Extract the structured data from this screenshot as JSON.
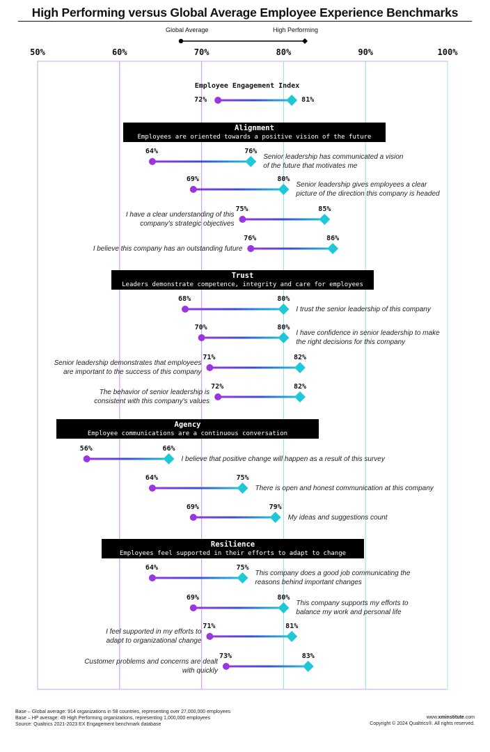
{
  "title": "High Performing versus Global Average Employee Experience Benchmarks",
  "legend": {
    "global": "Global Average",
    "high": "High Performing"
  },
  "colors": {
    "purple": "#9b35e0",
    "cyan": "#1ec8d8",
    "grid_purple": "#c9a3ee",
    "grid_cyan": "#9de3ec"
  },
  "axis": {
    "ticks": [
      "50%",
      "60%",
      "70%",
      "80%",
      "90%",
      "100%"
    ]
  },
  "sections": [
    {
      "title": "Alignment",
      "subtitle": "Employees are oriented towards a positive vision of the future"
    },
    {
      "title": "Trust",
      "subtitle": "Leaders demonstrate competence, integrity and care for employees"
    },
    {
      "title": "Agency",
      "subtitle": "Employee communications are a continuous conversation"
    },
    {
      "title": "Resilience",
      "subtitle": "Employees feel supported in their efforts to adapt to change"
    }
  ],
  "chart_data": {
    "type": "dumbbell",
    "title": "High Performing versus Global Average Employee Experience Benchmarks",
    "xlim": [
      50,
      100
    ],
    "x_unit": "%",
    "series": [
      {
        "name": "Global Average"
      },
      {
        "name": "High Performing"
      }
    ],
    "rows": [
      {
        "label": "Employee Engagement Index",
        "ga": 72,
        "hp": 81
      },
      {
        "label": "Senior leadership has communicated a vision\nof the future that motivates me",
        "ga": 64,
        "hp": 76
      },
      {
        "label": "Senior leadership gives employees a clear\npicture of the direction this company is headed",
        "ga": 69,
        "hp": 80
      },
      {
        "label": "I have a clear understanding of this\ncompany's strategic objectives",
        "ga": 75,
        "hp": 85
      },
      {
        "label": "I believe this company has an outstanding future",
        "ga": 76,
        "hp": 86
      },
      {
        "label": "I trust the senior leadership of this company",
        "ga": 68,
        "hp": 80
      },
      {
        "label": "I have confidence in senior leadership to make\nthe right decisions for this company",
        "ga": 70,
        "hp": 80
      },
      {
        "label": "Senior leadership demonstrates that employees\nare important to the success of this company",
        "ga": 71,
        "hp": 82
      },
      {
        "label": "The behavior of senior leadership is\nconsistent with this company's values",
        "ga": 72,
        "hp": 82
      },
      {
        "label": "I believe that positive change will happen as a result of this survey",
        "ga": 56,
        "hp": 66
      },
      {
        "label": "There is open and honest communication at this company",
        "ga": 64,
        "hp": 75
      },
      {
        "label": "My ideas and suggestions count",
        "ga": 69,
        "hp": 79
      },
      {
        "label": "This company does a good job communicating the\nreasons behind important changes",
        "ga": 64,
        "hp": 75
      },
      {
        "label": "This company supports my efforts to\nbalance my work and personal life",
        "ga": 69,
        "hp": 80
      },
      {
        "label": "I feel supported in my efforts to\nadapt to organizational change",
        "ga": 71,
        "hp": 81
      },
      {
        "label": "Customer problems and concerns are dealt\nwith quickly",
        "ga": 73,
        "hp": 83
      }
    ]
  },
  "footer": {
    "left": [
      "Base – Global average: 914 organizations in 58 countries, representing over 27,000,000 employees",
      "Base – HP average: 49 High Performing organizations,  representing 1,000,000 employees",
      "Source: Qualtrics 2021-2023 EX Engagement benchmark database"
    ],
    "site_prefix": "www.",
    "site_bold": "xminstitute",
    "site_suffix": ".com",
    "copyright": "Copyright © 2024 Qualtrics®. All rights reserved."
  }
}
